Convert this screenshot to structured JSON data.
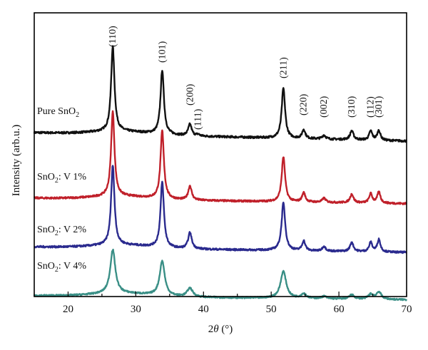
{
  "chart_data": {
    "type": "line",
    "xlabel": "2θ (°)",
    "xlabel_parts": {
      "var": "2",
      "theta": "θ",
      "unit": " (°)"
    },
    "ylabel": "Intensity (arb.u.)",
    "xlim": [
      15,
      70
    ],
    "x_ticks": [
      20,
      30,
      40,
      50,
      60,
      70
    ],
    "y_ticks_labeled": false,
    "grid": false,
    "legend": "none",
    "peaks": [
      {
        "label": "(110)",
        "x": 26.6
      },
      {
        "label": "(101)",
        "x": 33.9
      },
      {
        "label": "(200)",
        "x": 38.0
      },
      {
        "label": "(111)",
        "x": 39.2
      },
      {
        "label": "(211)",
        "x": 51.8
      },
      {
        "label": "(220)",
        "x": 54.8
      },
      {
        "label": "(002)",
        "x": 57.8
      },
      {
        "label": "(310)",
        "x": 61.9
      },
      {
        "label": "(112)",
        "x": 64.7
      },
      {
        "label": "(301)",
        "x": 65.9
      }
    ],
    "series": [
      {
        "name": "Pure SnO2",
        "label_main": "Pure SnO",
        "label_sub": "2",
        "label_tail": "",
        "color": "#111111",
        "baseline": 0.0,
        "slope": -0.006,
        "noise": 0.8,
        "peaks": [
          {
            "x": 26.6,
            "h": 33,
            "w": 0.3
          },
          {
            "x": 33.9,
            "h": 25,
            "w": 0.3
          },
          {
            "x": 38.0,
            "h": 4.5,
            "w": 0.3
          },
          {
            "x": 39.2,
            "h": 0.6,
            "w": 0.25
          },
          {
            "x": 51.8,
            "h": 19.5,
            "w": 0.3
          },
          {
            "x": 54.8,
            "h": 3.5,
            "w": 0.28
          },
          {
            "x": 57.8,
            "h": 1.5,
            "w": 0.3
          },
          {
            "x": 61.9,
            "h": 3.5,
            "w": 0.3
          },
          {
            "x": 64.7,
            "h": 3.5,
            "w": 0.28
          },
          {
            "x": 65.9,
            "h": 3.8,
            "w": 0.28
          }
        ]
      },
      {
        "name": "SnO2: V 1%",
        "label_main": "SnO",
        "label_sub": "2",
        "label_tail": ": V 1%",
        "color": "#c0202a",
        "baseline": -25.5,
        "slope": -0.004,
        "noise": 0.7,
        "peaks": [
          {
            "x": 26.6,
            "h": 33,
            "w": 0.3
          },
          {
            "x": 33.9,
            "h": 26.5,
            "w": 0.3
          },
          {
            "x": 38.0,
            "h": 5.5,
            "w": 0.3
          },
          {
            "x": 51.8,
            "h": 17.5,
            "w": 0.3
          },
          {
            "x": 54.8,
            "h": 3.6,
            "w": 0.28
          },
          {
            "x": 57.8,
            "h": 1.6,
            "w": 0.3
          },
          {
            "x": 61.9,
            "h": 3.4,
            "w": 0.3
          },
          {
            "x": 64.7,
            "h": 3.6,
            "w": 0.28
          },
          {
            "x": 65.9,
            "h": 4.3,
            "w": 0.28
          }
        ]
      },
      {
        "name": "SnO2: V 2%",
        "label_main": "SnO",
        "label_sub": "2",
        "label_tail": ": V 2%",
        "color": "#2a2a8e",
        "baseline": -44.5,
        "slope": -0.004,
        "noise": 0.7,
        "peaks": [
          {
            "x": 26.6,
            "h": 31,
            "w": 0.3
          },
          {
            "x": 33.9,
            "h": 25.5,
            "w": 0.3
          },
          {
            "x": 38.0,
            "h": 6.3,
            "w": 0.32
          },
          {
            "x": 51.8,
            "h": 18.5,
            "w": 0.32
          },
          {
            "x": 54.8,
            "h": 3.8,
            "w": 0.28
          },
          {
            "x": 57.8,
            "h": 1.8,
            "w": 0.3
          },
          {
            "x": 61.9,
            "h": 3.6,
            "w": 0.3
          },
          {
            "x": 64.7,
            "h": 3.6,
            "w": 0.28
          },
          {
            "x": 65.9,
            "h": 4.8,
            "w": 0.28
          }
        ]
      },
      {
        "name": "SnO2: V 4%",
        "label_main": "SnO",
        "label_sub": "2",
        "label_tail": ": V 4%",
        "color": "#3a8f86",
        "baseline": -63.5,
        "slope": -0.003,
        "noise": 0.6,
        "peaks": [
          {
            "x": 26.6,
            "h": 17,
            "w": 0.45
          },
          {
            "x": 33.9,
            "h": 13.5,
            "w": 0.45
          },
          {
            "x": 38.0,
            "h": 3.4,
            "w": 0.5
          },
          {
            "x": 51.8,
            "h": 10.5,
            "w": 0.5
          },
          {
            "x": 54.8,
            "h": 1.8,
            "w": 0.45
          },
          {
            "x": 57.8,
            "h": 0.9,
            "w": 0.45
          },
          {
            "x": 61.9,
            "h": 1.6,
            "w": 0.45
          },
          {
            "x": 64.7,
            "h": 1.8,
            "w": 0.45
          },
          {
            "x": 65.9,
            "h": 2.8,
            "w": 0.45
          }
        ]
      }
    ]
  }
}
